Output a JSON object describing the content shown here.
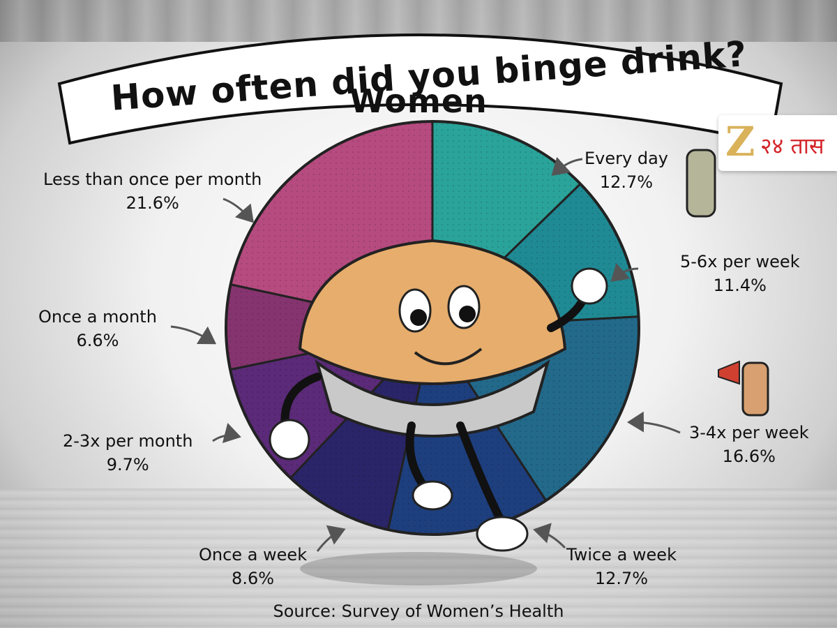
{
  "title": "How often did you binge drink?",
  "subtitle": "Women",
  "source": "Source: Survey of Women’s Health",
  "logo": {
    "mark": "Z",
    "text": "२४ तास"
  },
  "chart_data": {
    "type": "pie",
    "title": "How often did you binge drink?",
    "subtitle": "Women",
    "slices": [
      {
        "label": "Every day",
        "value": 12.7,
        "display": "12.7%",
        "color": "#2aa39a"
      },
      {
        "label": "5-6x per week",
        "value": 11.4,
        "display": "11.4%",
        "color": "#1f8a94"
      },
      {
        "label": "3-4x per week",
        "value": 16.6,
        "display": "16.6%",
        "color": "#22698a"
      },
      {
        "label": "Twice a week",
        "value": 12.7,
        "display": "12.7%",
        "color": "#1e3f7e"
      },
      {
        "label": "Once a week",
        "value": 8.6,
        "display": "8.6%",
        "color": "#2a2568"
      },
      {
        "label": "2-3x per month",
        "value": 9.7,
        "display": "9.7%",
        "color": "#5b2a78"
      },
      {
        "label": "Once a month",
        "value": 6.6,
        "display": "6.6%",
        "color": "#86346f"
      },
      {
        "label": "Less than once per month",
        "value": 21.6,
        "display": "21.6%",
        "color": "#b64b80"
      }
    ]
  }
}
